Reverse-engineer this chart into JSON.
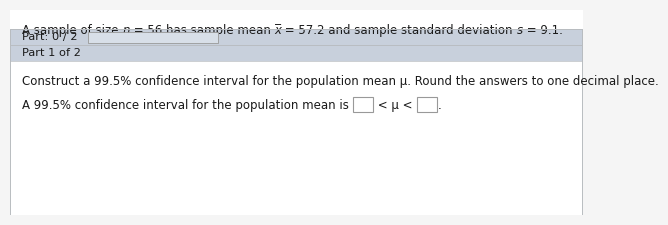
{
  "bg_color": "#f5f5f5",
  "white": "#ffffff",
  "light_blue_gray": "#c8d0dc",
  "part1_bg": "#dde3ea",
  "text_color": "#1a1a1a",
  "border_color": "#b8bcc0",
  "progress_bar_color": "#d8dfe8",
  "box_border_color": "#999999",
  "line1_parts": [
    {
      "text": "A sample of size ",
      "style": "normal"
    },
    {
      "text": "n",
      "style": "italic"
    },
    {
      "text": " = 56 has sample mean ",
      "style": "normal"
    },
    {
      "text": "x̅",
      "style": "italic"
    },
    {
      "text": " = 57.2 and sample standard deviation ",
      "style": "normal"
    },
    {
      "text": "s",
      "style": "italic"
    },
    {
      "text": " = 9.1.",
      "style": "normal"
    }
  ],
  "part_label": "Part: 0 / 2",
  "part1_label": "Part 1 of 2",
  "construct_text": "Construct a 99.5% confidence interval for the population mean μ. Round the answers to one decimal place.",
  "answer_prefix": "A 99.5% confidence interval for the population mean is",
  "answer_middle": " < μ < ",
  "answer_suffix": ".",
  "font_size": 8.5,
  "font_size_small": 8.2
}
